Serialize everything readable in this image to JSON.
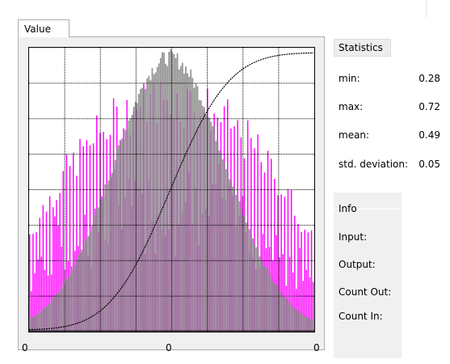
{
  "tab": {
    "label": "Value"
  },
  "chart_data": {
    "type": "bar",
    "title": "",
    "xlabel": "",
    "ylabel": "",
    "x_tick_labels": [
      "0",
      "0",
      "0"
    ],
    "series": [
      {
        "color": "#ff00ff",
        "shape": "wide bell, broader spread"
      },
      {
        "color": "#808080",
        "shape": "narrow bell, peaked at center"
      },
      {
        "color": "#000000",
        "line": "dotted cumulative curve"
      }
    ],
    "grid": true,
    "x_range": [
      0,
      1
    ],
    "y_range": [
      0,
      1
    ]
  },
  "statistics": {
    "header": "Statistics",
    "rows": [
      {
        "label": "min:",
        "value": "0.28"
      },
      {
        "label": "max:",
        "value": "0.72"
      },
      {
        "label": "mean:",
        "value": "0.49"
      },
      {
        "label": "std. deviation:",
        "value": "0.05"
      }
    ]
  },
  "info": {
    "header": "Info",
    "rows": [
      {
        "label": "Input:"
      },
      {
        "label": "Output:"
      },
      {
        "label": "Count Out:"
      },
      {
        "label": "Count In:"
      }
    ]
  },
  "colors": {
    "magenta": "#ff00ff",
    "gray": "#808080",
    "grid": "#000000",
    "panel": "#f0f0f0"
  }
}
